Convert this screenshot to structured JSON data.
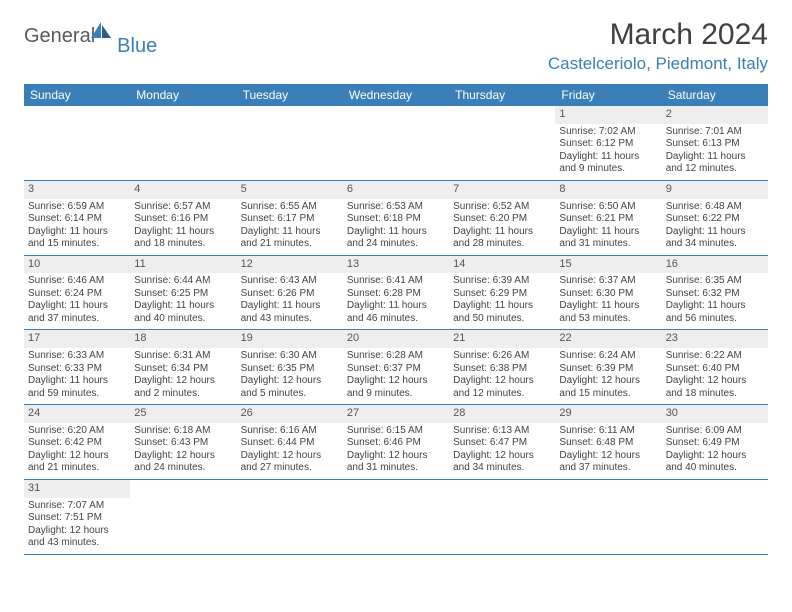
{
  "logo": {
    "main": "General",
    "accent": "Blue"
  },
  "title": "March 2024",
  "location": "Castelceriolo, Piedmont, Italy",
  "colors": {
    "header_bg": "#3b7fb8",
    "header_text": "#ffffff",
    "daynum_bg": "#eeeeee",
    "border": "#3b7fb8",
    "text": "#444444",
    "title_text": "#404040",
    "accent": "#3b7fb8"
  },
  "day_headers": [
    "Sunday",
    "Monday",
    "Tuesday",
    "Wednesday",
    "Thursday",
    "Friday",
    "Saturday"
  ],
  "weeks": [
    [
      null,
      null,
      null,
      null,
      null,
      {
        "n": "1",
        "sr": "7:02 AM",
        "ss": "6:12 PM",
        "dl": "11 hours and 9 minutes."
      },
      {
        "n": "2",
        "sr": "7:01 AM",
        "ss": "6:13 PM",
        "dl": "11 hours and 12 minutes."
      }
    ],
    [
      {
        "n": "3",
        "sr": "6:59 AM",
        "ss": "6:14 PM",
        "dl": "11 hours and 15 minutes."
      },
      {
        "n": "4",
        "sr": "6:57 AM",
        "ss": "6:16 PM",
        "dl": "11 hours and 18 minutes."
      },
      {
        "n": "5",
        "sr": "6:55 AM",
        "ss": "6:17 PM",
        "dl": "11 hours and 21 minutes."
      },
      {
        "n": "6",
        "sr": "6:53 AM",
        "ss": "6:18 PM",
        "dl": "11 hours and 24 minutes."
      },
      {
        "n": "7",
        "sr": "6:52 AM",
        "ss": "6:20 PM",
        "dl": "11 hours and 28 minutes."
      },
      {
        "n": "8",
        "sr": "6:50 AM",
        "ss": "6:21 PM",
        "dl": "11 hours and 31 minutes."
      },
      {
        "n": "9",
        "sr": "6:48 AM",
        "ss": "6:22 PM",
        "dl": "11 hours and 34 minutes."
      }
    ],
    [
      {
        "n": "10",
        "sr": "6:46 AM",
        "ss": "6:24 PM",
        "dl": "11 hours and 37 minutes."
      },
      {
        "n": "11",
        "sr": "6:44 AM",
        "ss": "6:25 PM",
        "dl": "11 hours and 40 minutes."
      },
      {
        "n": "12",
        "sr": "6:43 AM",
        "ss": "6:26 PM",
        "dl": "11 hours and 43 minutes."
      },
      {
        "n": "13",
        "sr": "6:41 AM",
        "ss": "6:28 PM",
        "dl": "11 hours and 46 minutes."
      },
      {
        "n": "14",
        "sr": "6:39 AM",
        "ss": "6:29 PM",
        "dl": "11 hours and 50 minutes."
      },
      {
        "n": "15",
        "sr": "6:37 AM",
        "ss": "6:30 PM",
        "dl": "11 hours and 53 minutes."
      },
      {
        "n": "16",
        "sr": "6:35 AM",
        "ss": "6:32 PM",
        "dl": "11 hours and 56 minutes."
      }
    ],
    [
      {
        "n": "17",
        "sr": "6:33 AM",
        "ss": "6:33 PM",
        "dl": "11 hours and 59 minutes."
      },
      {
        "n": "18",
        "sr": "6:31 AM",
        "ss": "6:34 PM",
        "dl": "12 hours and 2 minutes."
      },
      {
        "n": "19",
        "sr": "6:30 AM",
        "ss": "6:35 PM",
        "dl": "12 hours and 5 minutes."
      },
      {
        "n": "20",
        "sr": "6:28 AM",
        "ss": "6:37 PM",
        "dl": "12 hours and 9 minutes."
      },
      {
        "n": "21",
        "sr": "6:26 AM",
        "ss": "6:38 PM",
        "dl": "12 hours and 12 minutes."
      },
      {
        "n": "22",
        "sr": "6:24 AM",
        "ss": "6:39 PM",
        "dl": "12 hours and 15 minutes."
      },
      {
        "n": "23",
        "sr": "6:22 AM",
        "ss": "6:40 PM",
        "dl": "12 hours and 18 minutes."
      }
    ],
    [
      {
        "n": "24",
        "sr": "6:20 AM",
        "ss": "6:42 PM",
        "dl": "12 hours and 21 minutes."
      },
      {
        "n": "25",
        "sr": "6:18 AM",
        "ss": "6:43 PM",
        "dl": "12 hours and 24 minutes."
      },
      {
        "n": "26",
        "sr": "6:16 AM",
        "ss": "6:44 PM",
        "dl": "12 hours and 27 minutes."
      },
      {
        "n": "27",
        "sr": "6:15 AM",
        "ss": "6:46 PM",
        "dl": "12 hours and 31 minutes."
      },
      {
        "n": "28",
        "sr": "6:13 AM",
        "ss": "6:47 PM",
        "dl": "12 hours and 34 minutes."
      },
      {
        "n": "29",
        "sr": "6:11 AM",
        "ss": "6:48 PM",
        "dl": "12 hours and 37 minutes."
      },
      {
        "n": "30",
        "sr": "6:09 AM",
        "ss": "6:49 PM",
        "dl": "12 hours and 40 minutes."
      }
    ],
    [
      {
        "n": "31",
        "sr": "7:07 AM",
        "ss": "7:51 PM",
        "dl": "12 hours and 43 minutes."
      },
      null,
      null,
      null,
      null,
      null,
      null
    ]
  ],
  "labels": {
    "sunrise": "Sunrise:",
    "sunset": "Sunset:",
    "daylight": "Daylight:"
  }
}
